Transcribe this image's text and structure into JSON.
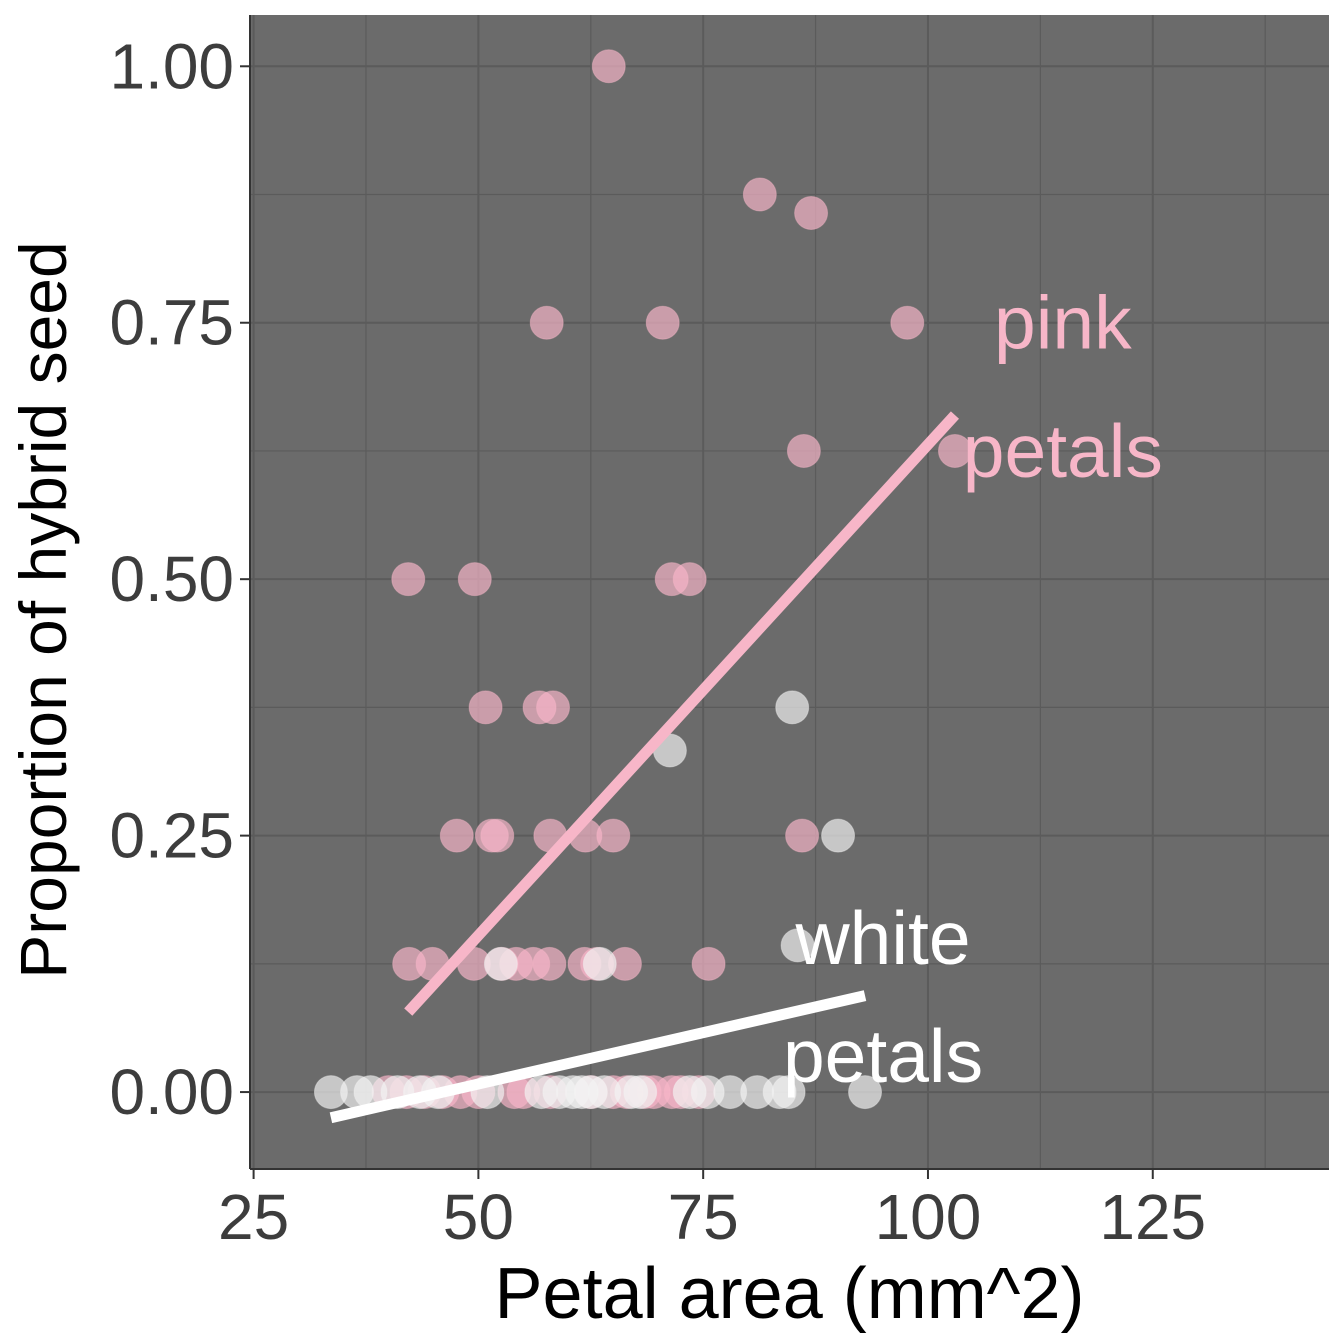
{
  "chart_data": {
    "type": "scatter",
    "title": "",
    "xlabel": "Petal area (mm^2)",
    "ylabel": "Proportion of hybrid seed",
    "xlim": [
      24.6,
      144.6
    ],
    "ylim": [
      -0.075,
      1.05
    ],
    "x_ticks": [
      "25",
      "50",
      "75",
      "100",
      "125"
    ],
    "x_tick_values": [
      25,
      50,
      75,
      100,
      125
    ],
    "y_ticks": [
      "0.00",
      "0.25",
      "0.50",
      "0.75",
      "1.00"
    ],
    "y_tick_values": [
      0,
      0.25,
      0.5,
      0.75,
      1.0
    ],
    "grid": true,
    "legend": "none",
    "colors": {
      "panel_background": "#6b6b6b",
      "grid": "#5b5b5b",
      "pink": "#f7b6c8",
      "white": "#f3f3f3"
    },
    "series": [
      {
        "name": "pink petals",
        "color": "#f7b6c8",
        "x": [
          64.5,
          81.3,
          87.0,
          57.6,
          70.5,
          97.7,
          86.2,
          103.0,
          42.2,
          49.6,
          71.5,
          73.5,
          50.8,
          56.8,
          58.3,
          47.6,
          51.5,
          52.1,
          58.0,
          61.9,
          65.0,
          86.0,
          42.3,
          44.9,
          49.5,
          52.6,
          54.2,
          56.1,
          57.9,
          61.8,
          63.2,
          66.3,
          75.6,
          40.0,
          42.0,
          44.0,
          46.0,
          48.0,
          50.0,
          54.0,
          55.0,
          58.0,
          62.5,
          65.0,
          66.5,
          68.5,
          69.5,
          71.5,
          72.5,
          74.5
        ],
        "y": [
          1.0,
          0.875,
          0.857,
          0.75,
          0.75,
          0.75,
          0.625,
          0.625,
          0.5,
          0.5,
          0.5,
          0.5,
          0.375,
          0.375,
          0.375,
          0.25,
          0.25,
          0.25,
          0.25,
          0.25,
          0.25,
          0.25,
          0.125,
          0.125,
          0.125,
          0.125,
          0.125,
          0.125,
          0.125,
          0.125,
          0.125,
          0.125,
          0.125,
          0,
          0,
          0,
          0,
          0,
          0,
          0,
          0,
          0,
          0,
          0,
          0,
          0,
          0,
          0,
          0,
          0
        ]
      },
      {
        "name": "white petals",
        "color": "#f3f3f3",
        "x": [
          84.9,
          71.3,
          90.0,
          85.5,
          52.5,
          63.5,
          33.6,
          36.5,
          38.0,
          41.0,
          43.5,
          45.5,
          51.0,
          57.0,
          59.0,
          60.5,
          61.5,
          62.5,
          64.0,
          67.0,
          68.0,
          73.5,
          75.5,
          78.0,
          81.0,
          83.5,
          84.5,
          93.0
        ],
        "y": [
          0.375,
          0.333,
          0.25,
          0.143,
          0.125,
          0.125,
          0,
          0,
          0,
          0,
          0,
          0,
          0,
          0,
          0,
          0,
          0,
          0,
          0,
          0,
          0,
          0,
          0,
          0,
          0,
          0,
          0,
          0
        ]
      }
    ],
    "trend_lines": [
      {
        "series": "pink petals",
        "color": "#f7b6c8",
        "x": [
          42.2,
          103.0
        ],
        "y": [
          0.078,
          0.66
        ]
      },
      {
        "series": "white petals",
        "color": "#ffffff",
        "x": [
          33.6,
          93.0
        ],
        "y": [
          -0.025,
          0.094
        ]
      }
    ],
    "annotations": [
      {
        "lines": [
          "pink",
          "petals"
        ],
        "color": "#f7b6c8",
        "x": 115,
        "y": [
          0.75,
          0.625
        ]
      },
      {
        "lines": [
          "white",
          "petals"
        ],
        "color": "#ffffff",
        "x": 95,
        "y": [
          0.15,
          0.035
        ]
      }
    ]
  }
}
